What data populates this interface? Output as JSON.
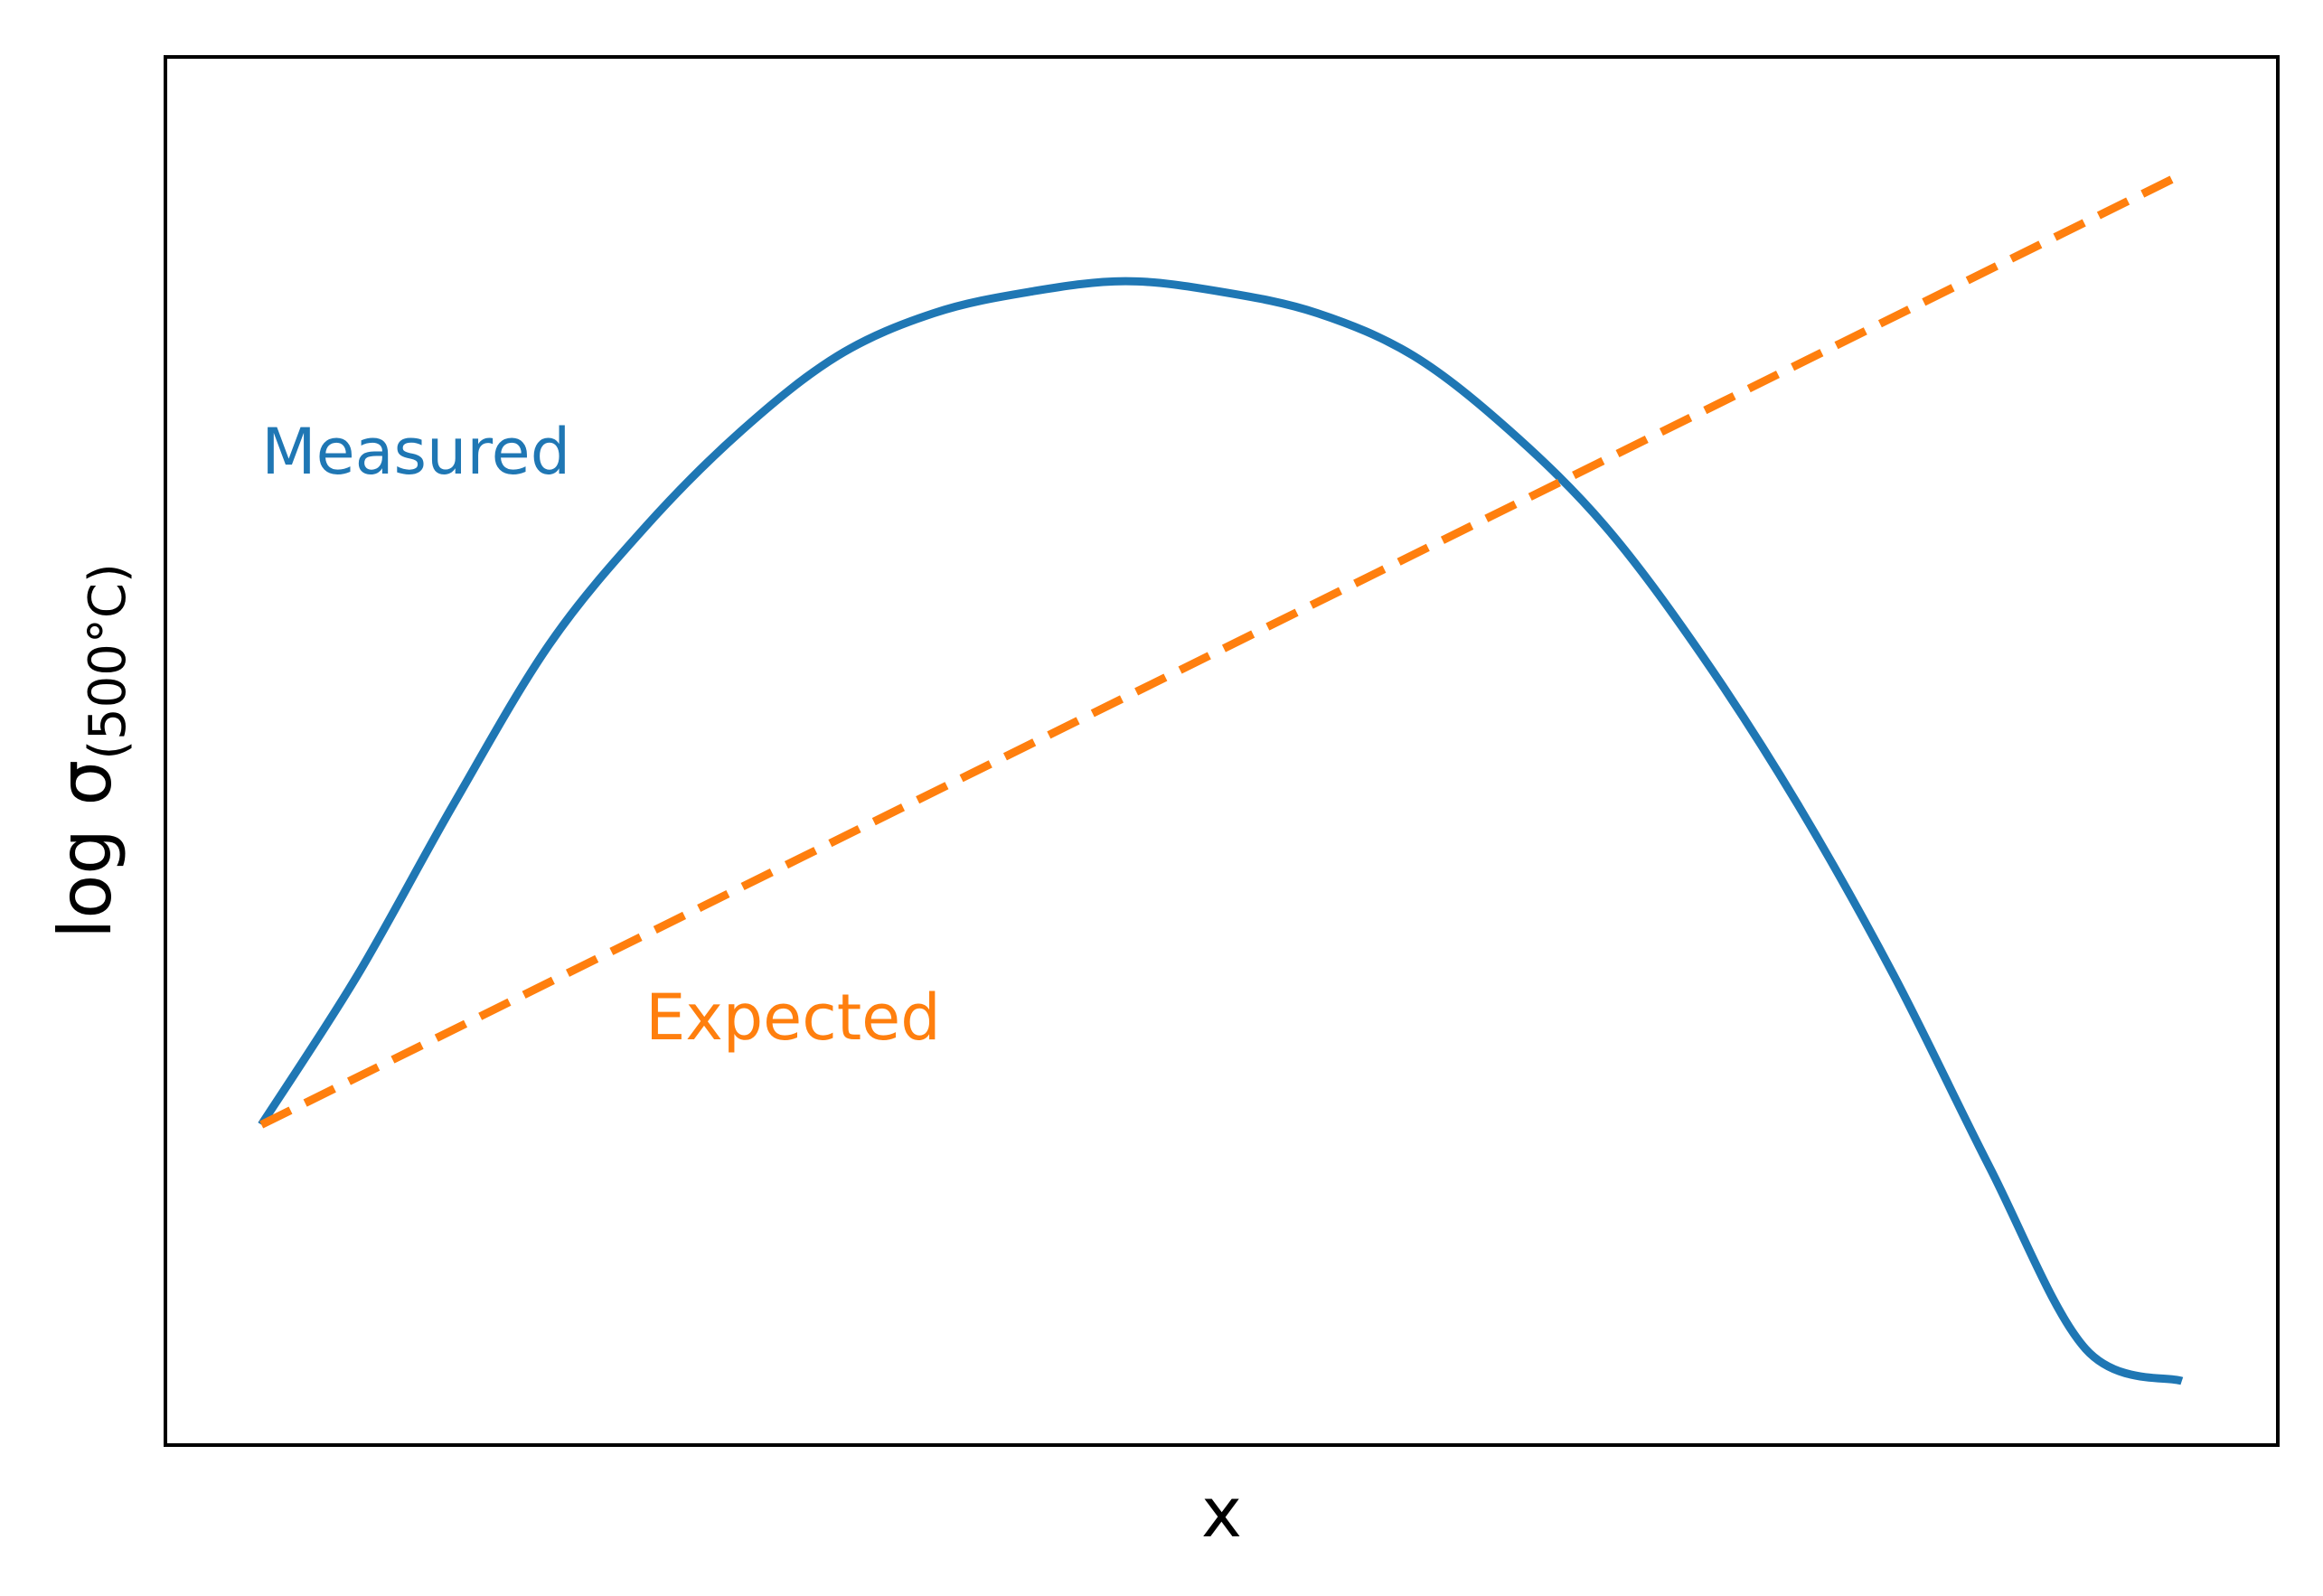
{
  "chart_data": {
    "type": "line",
    "title": "",
    "xlabel": "x",
    "ylabel_main": "log σ",
    "ylabel_subscript": "(500°C)",
    "xlim": [
      -0.05,
      1.05
    ],
    "ylim": [
      -0.3,
      1.0
    ],
    "grid": false,
    "legend": "none",
    "ticks_visible": false,
    "series": [
      {
        "name": "Measured",
        "color": "#1f77b4",
        "style": "solid",
        "x": [
          0,
          0.05,
          0.1,
          0.15,
          0.2,
          0.25,
          0.3,
          0.35,
          0.4,
          0.45,
          0.5,
          0.55,
          0.6,
          0.65,
          0.7,
          0.75,
          0.8,
          0.85,
          0.9,
          0.95,
          1.0
        ],
        "y": [
          0.0,
          0.14,
          0.3,
          0.45,
          0.56,
          0.65,
          0.72,
          0.76,
          0.78,
          0.79,
          0.78,
          0.76,
          0.72,
          0.65,
          0.56,
          0.44,
          0.3,
          0.14,
          -0.04,
          -0.21,
          -0.24
        ]
      },
      {
        "name": "Expected",
        "color": "#ff7f0e",
        "style": "dashed",
        "x": [
          0,
          1
        ],
        "y": [
          0.0,
          0.89
        ]
      }
    ],
    "annotations": [
      {
        "text": "Measured",
        "series": "Measured",
        "x": 0.0,
        "y": 0.61
      },
      {
        "text": "Expected",
        "series": "Expected",
        "x": 0.2,
        "y": 0.08
      }
    ]
  }
}
